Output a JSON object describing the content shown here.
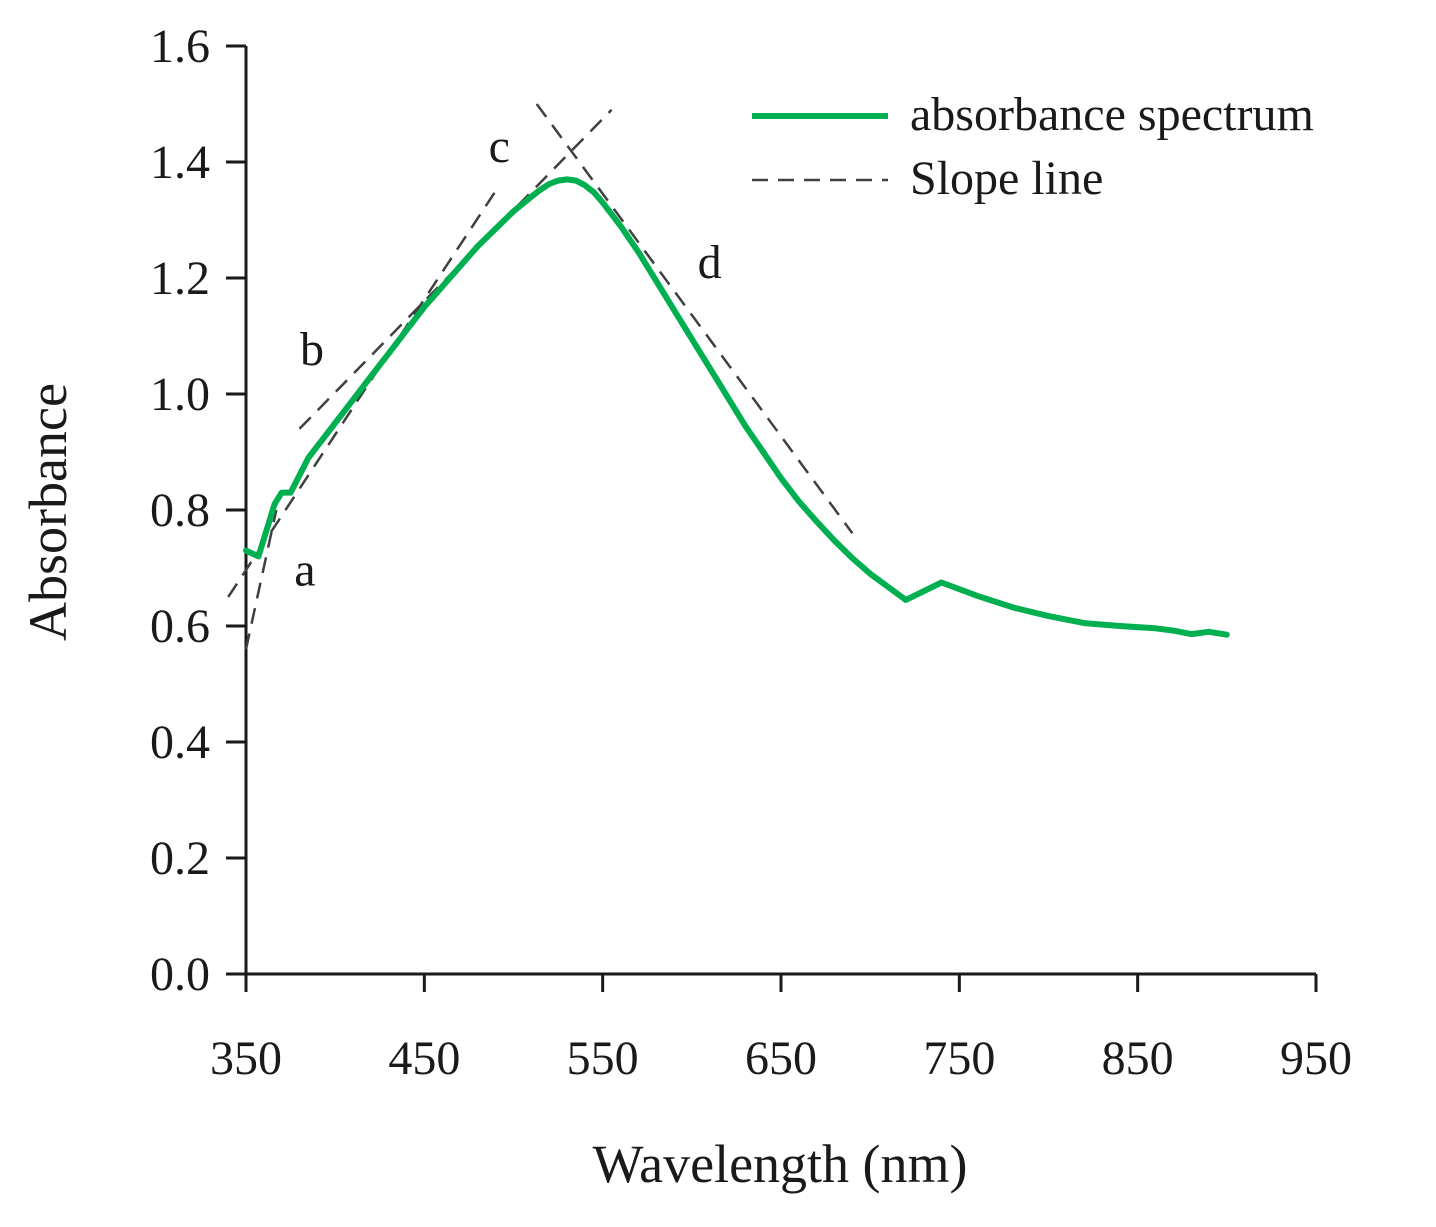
{
  "chart_data": {
    "type": "line",
    "title": "",
    "xlabel": "Wavelength (nm)",
    "ylabel": "Absorbance",
    "xlim": [
      350,
      950
    ],
    "ylim": [
      0.0,
      1.6
    ],
    "xticks": [
      350,
      450,
      550,
      650,
      750,
      850,
      950
    ],
    "yticks": [
      0.0,
      0.2,
      0.4,
      0.6,
      0.8,
      1.0,
      1.2,
      1.4,
      1.6
    ],
    "xtick_labels": [
      "350",
      "450",
      "550",
      "650",
      "750",
      "850",
      "950"
    ],
    "ytick_labels": [
      "0.0",
      "0.2",
      "0.4",
      "0.6",
      "0.8",
      "1.0",
      "1.2",
      "1.4",
      "1.6"
    ],
    "grid": false,
    "legend_position": "top-right",
    "legend": [
      {
        "label": "absorbance spectrum",
        "style": "solid",
        "color": "#00b050"
      },
      {
        "label": "Slope line",
        "style": "dashed",
        "color": "#404040"
      }
    ],
    "series": [
      {
        "name": "absorbance spectrum",
        "color": "#00b050",
        "x": [
          350,
          357,
          360,
          363,
          366,
          370,
          375,
          380,
          385,
          390,
          400,
          410,
          420,
          430,
          440,
          450,
          460,
          470,
          480,
          490,
          500,
          510,
          515,
          520,
          525,
          530,
          535,
          540,
          545,
          550,
          560,
          570,
          580,
          590,
          600,
          610,
          620,
          630,
          640,
          650,
          660,
          670,
          680,
          690,
          700,
          720,
          740,
          760,
          780,
          800,
          820,
          840,
          860,
          870,
          880,
          890,
          900
        ],
        "y": [
          0.73,
          0.72,
          0.75,
          0.78,
          0.81,
          0.83,
          0.83,
          0.86,
          0.89,
          0.91,
          0.95,
          0.99,
          1.03,
          1.07,
          1.11,
          1.15,
          1.185,
          1.22,
          1.255,
          1.285,
          1.315,
          1.34,
          1.352,
          1.362,
          1.368,
          1.37,
          1.368,
          1.36,
          1.348,
          1.33,
          1.29,
          1.245,
          1.195,
          1.145,
          1.095,
          1.045,
          0.995,
          0.945,
          0.9,
          0.855,
          0.815,
          0.78,
          0.747,
          0.717,
          0.69,
          0.645,
          0.675,
          0.652,
          0.632,
          0.617,
          0.605,
          0.6,
          0.596,
          0.592,
          0.586,
          0.59,
          0.585
        ]
      }
    ],
    "slope_lines": [
      {
        "name": "a",
        "x": [
          350,
          367
        ],
        "y": [
          0.56,
          0.8
        ]
      },
      {
        "name": "b",
        "x": [
          340,
          490
        ],
        "y": [
          0.65,
          1.35
        ]
      },
      {
        "name": "c",
        "x": [
          380,
          555
        ],
        "y": [
          0.94,
          1.49
        ]
      },
      {
        "name": "d",
        "x": [
          513,
          690
        ],
        "y": [
          1.5,
          0.76
        ]
      }
    ],
    "annotations": [
      {
        "text": "a",
        "x": 383,
        "y": 0.67
      },
      {
        "text": "b",
        "x": 387,
        "y": 1.05
      },
      {
        "text": "c",
        "x": 492,
        "y": 1.4
      },
      {
        "text": "d",
        "x": 610,
        "y": 1.2
      }
    ]
  }
}
